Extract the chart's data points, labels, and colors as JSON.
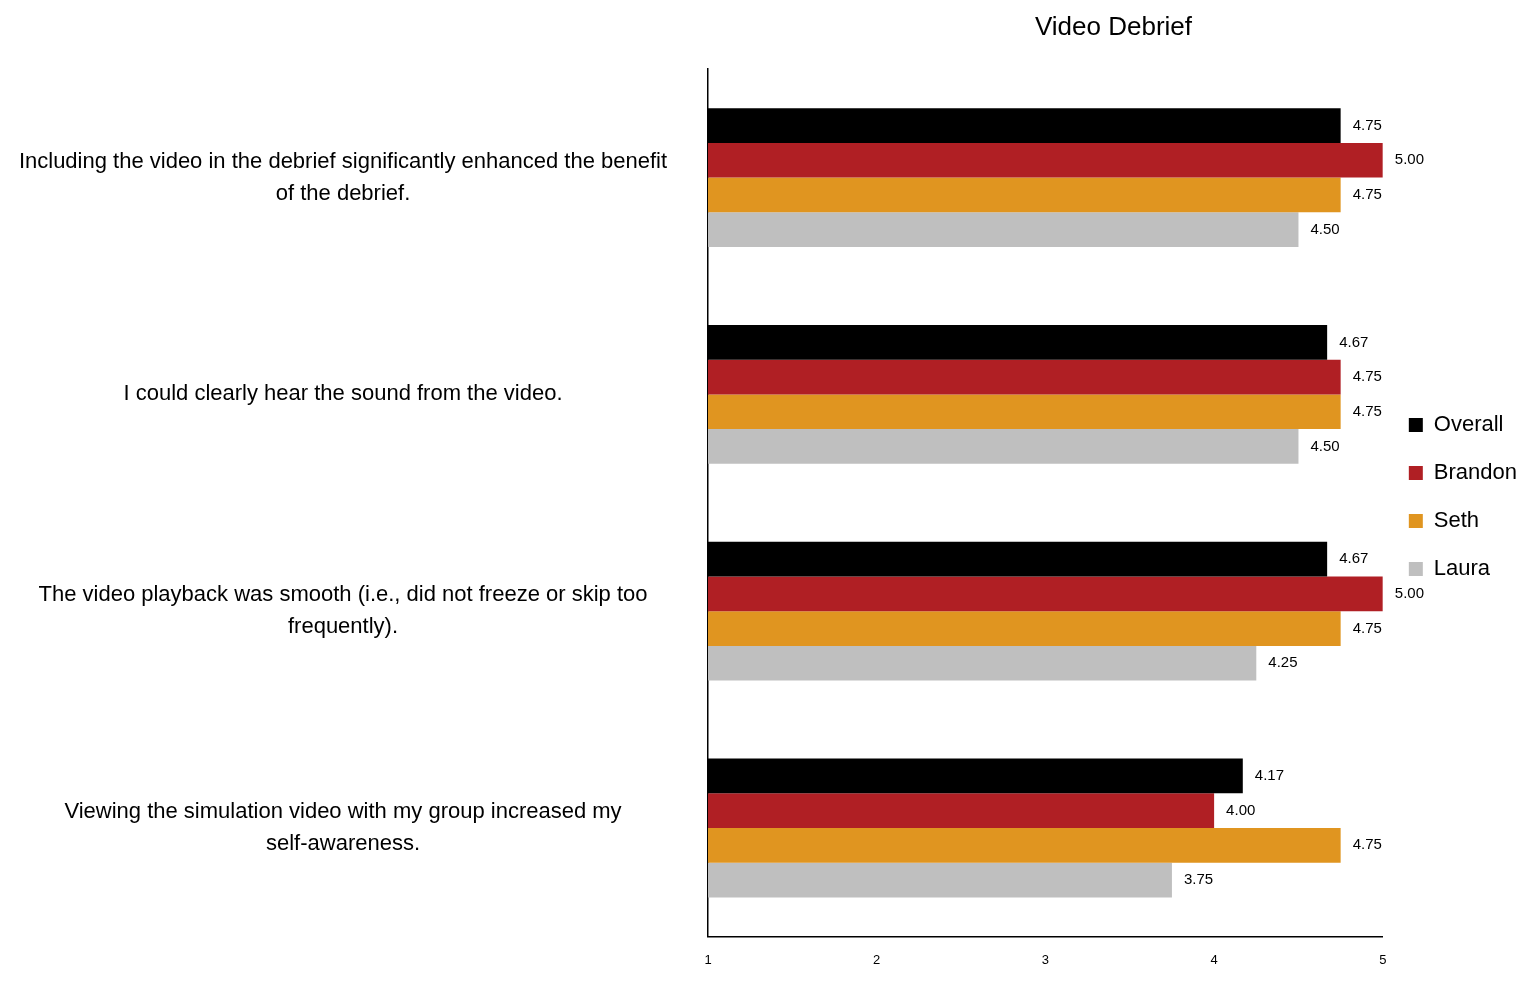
{
  "chart_data": {
    "type": "bar",
    "orientation": "horizontal",
    "title": "Video Debrief",
    "categories": [
      "Including the video in the debrief significantly enhanced the benefit of the debrief.",
      "I could clearly hear the sound from the video.",
      "The video playback was smooth (i.e., did not freeze or skip too frequently).",
      "Viewing the simulation video with my group increased my self-awareness."
    ],
    "series": [
      {
        "name": "Overall",
        "color": "#000000",
        "values": [
          4.75,
          4.67,
          4.67,
          4.17
        ],
        "value_labels": [
          "4.75",
          "4.67",
          "4.67",
          "4.17"
        ]
      },
      {
        "name": "Brandon",
        "color": "#b01f24",
        "values": [
          5.0,
          4.75,
          5.0,
          4.0
        ],
        "value_labels": [
          "5.00",
          "4.75",
          "5.00",
          "4.00"
        ]
      },
      {
        "name": "Seth",
        "color": "#e09520",
        "values": [
          4.75,
          4.75,
          4.75,
          4.75
        ],
        "value_labels": [
          "4.75",
          "4.75",
          "4.75",
          "4.75"
        ]
      },
      {
        "name": "Laura",
        "color": "#bfbfbf",
        "values": [
          4.5,
          4.5,
          4.25,
          3.75
        ],
        "value_labels": [
          "4.50",
          "4.50",
          "4.25",
          "3.75"
        ]
      }
    ],
    "xlim": [
      1,
      5
    ],
    "xticks": [
      1,
      2,
      3,
      4,
      5
    ],
    "grid": false,
    "legend": "right"
  }
}
